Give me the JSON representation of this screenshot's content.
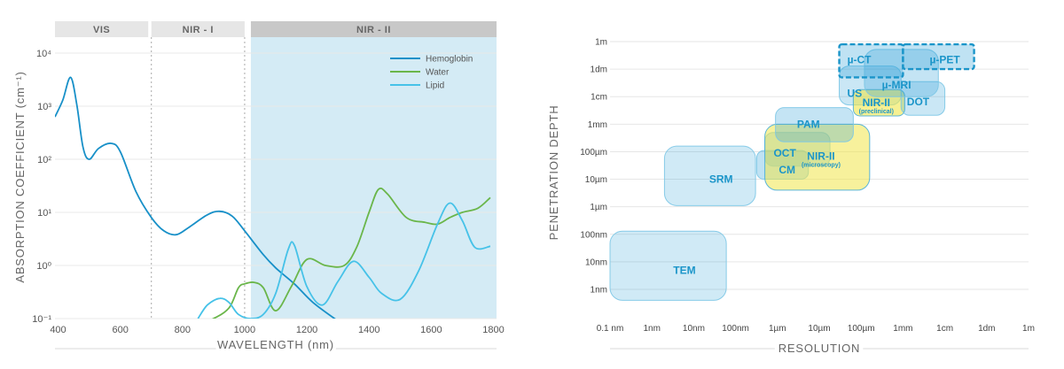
{
  "chart_data": [
    {
      "type": "line",
      "title": "",
      "xlabel": "WAVELENGTH (nm)",
      "ylabel": "ABSORPTION COEFFICIENT (cm⁻¹)",
      "xlim": [
        390,
        1810
      ],
      "y_scale": "log",
      "ylim": [
        0.1,
        20000
      ],
      "x_ticks": [
        "400",
        "600",
        "800",
        "1000",
        "1200",
        "1400",
        "1600",
        "1800"
      ],
      "x_tick_values": [
        400,
        600,
        800,
        1000,
        1200,
        1400,
        1600,
        1800
      ],
      "y_ticks": [
        "10⁻¹",
        "10⁰",
        "10¹",
        "10²",
        "10³",
        "10⁴"
      ],
      "y_tick_values": [
        0.1,
        1,
        10,
        100,
        1000,
        10000
      ],
      "grid": "horizontal",
      "legend_position": "top-right",
      "bands": [
        {
          "label": "VIS",
          "range": [
            390,
            690
          ]
        },
        {
          "label": "NIR - I",
          "range": [
            700,
            1000
          ]
        },
        {
          "label": "NIR - II",
          "range": [
            1020,
            1810
          ]
        }
      ],
      "dividers": [
        700,
        1000
      ],
      "shaded_range": [
        1020,
        1810
      ],
      "series": [
        {
          "name": "Hemoglobin",
          "color": "#1890c8",
          "x": [
            390,
            415,
            440,
            460,
            480,
            500,
            530,
            570,
            600,
            650,
            700,
            740,
            780,
            820,
            880,
            920,
            960,
            1000,
            1060,
            1100,
            1160,
            1220,
            1300
          ],
          "y": [
            630,
            1300,
            3500,
            1100,
            170,
            100,
            160,
            200,
            140,
            25,
            8,
            4.5,
            3.8,
            5.2,
            9,
            10.5,
            8.5,
            4.5,
            1.6,
            0.9,
            0.45,
            0.2,
            0.09
          ]
        },
        {
          "name": "Water",
          "color": "#6ab64a",
          "x": [
            850,
            900,
            950,
            980,
            1000,
            1030,
            1060,
            1100,
            1150,
            1200,
            1260,
            1320,
            1360,
            1400,
            1430,
            1460,
            1520,
            1580,
            1620,
            1660,
            1700,
            1750,
            1790
          ],
          "y": [
            0.08,
            0.1,
            0.16,
            0.38,
            0.45,
            0.48,
            0.38,
            0.14,
            0.4,
            1.3,
            1.0,
            1.0,
            2.2,
            10,
            27,
            22,
            8,
            6.5,
            6,
            8,
            10,
            12,
            19
          ]
        },
        {
          "name": "Lipid",
          "color": "#46c2e8",
          "x": [
            850,
            880,
            920,
            950,
            980,
            1020,
            1060,
            1100,
            1140,
            1160,
            1200,
            1250,
            1300,
            1350,
            1400,
            1440,
            1500,
            1560,
            1620,
            1660,
            1700,
            1740,
            1790
          ],
          "y": [
            0.1,
            0.18,
            0.24,
            0.2,
            0.12,
            0.1,
            0.12,
            0.3,
            2.0,
            2.4,
            0.4,
            0.18,
            0.5,
            1.2,
            0.6,
            0.3,
            0.23,
            0.8,
            6,
            15,
            7,
            2.2,
            2.3
          ]
        }
      ]
    },
    {
      "type": "scatter",
      "title": "",
      "xlabel": "RESOLUTION",
      "ylabel": "PENETRATION DEPTH",
      "x_scale": "log",
      "y_scale": "log",
      "x_ticks": [
        "0.1 nm",
        "1nm",
        "10nm",
        "100nm",
        "1µm",
        "10µm",
        "100µm",
        "1mm",
        "1cm",
        "1dm",
        "1m"
      ],
      "x_tick_values_m": [
        1e-10,
        1e-09,
        1e-08,
        1e-07,
        1e-06,
        1e-05,
        0.0001,
        0.001,
        0.01,
        0.1,
        1
      ],
      "y_ticks": [
        "1m",
        "1dm",
        "1cm",
        "1mm",
        "100µm",
        "10µm",
        "1µm",
        "100nm",
        "10nm",
        "1nm"
      ],
      "y_tick_values_m": [
        1,
        0.1,
        0.01,
        0.001,
        0.0001,
        1e-05,
        1e-06,
        1e-07,
        1e-08,
        1e-09
      ],
      "grid": "horizontal",
      "modalities": [
        {
          "label": "TEM",
          "sublabel": "",
          "x_range_m": [
            1e-10,
            6e-08
          ],
          "y_range_m": [
            4e-10,
            1.3e-07
          ],
          "style": "fill",
          "color": "#2a9fd6",
          "opacity": 0.22
        },
        {
          "label": "SRM",
          "sublabel": "",
          "x_range_m": [
            2e-09,
            3e-07
          ],
          "y_range_m": [
            1.1e-06,
            0.00016
          ],
          "style": "fill",
          "color": "#2a9fd6",
          "opacity": 0.22
        },
        {
          "label": "CM",
          "sublabel": "",
          "x_range_m": [
            3.2e-07,
            5.5e-06
          ],
          "y_range_m": [
            1e-05,
            0.00011
          ],
          "style": "fill",
          "color": "#2a9fd6",
          "opacity": 0.3
        },
        {
          "label": "OCT",
          "sublabel": "",
          "x_range_m": [
            5e-07,
            1.8e-05
          ],
          "y_range_m": [
            3e-05,
            0.0005
          ],
          "style": "fill",
          "color": "#2a9fd6",
          "opacity": 0.3
        },
        {
          "label": "NIR-II",
          "sublabel": "(microscopy)",
          "x_range_m": [
            5e-07,
            0.00016
          ],
          "y_range_m": [
            4e-06,
            0.001
          ],
          "style": "fill",
          "color": "#f0e64a",
          "opacity": 0.55
        },
        {
          "label": "PAM",
          "sublabel": "",
          "x_range_m": [
            9e-07,
            6.5e-05
          ],
          "y_range_m": [
            0.00023,
            0.004
          ],
          "style": "fill",
          "color": "#2a9fd6",
          "opacity": 0.28
        },
        {
          "label": "US",
          "sublabel": "",
          "x_range_m": [
            3e-05,
            0.0009
          ],
          "y_range_m": [
            0.005,
            0.13
          ],
          "style": "fill",
          "color": "#2a9fd6",
          "opacity": 0.25
        },
        {
          "label": "NIR-II",
          "sublabel": "(preclinical)",
          "x_range_m": [
            6.5e-05,
            0.0011
          ],
          "y_range_m": [
            0.002,
            0.018
          ],
          "style": "fill",
          "color": "#f0e64a",
          "opacity": 0.6
        },
        {
          "label": "DOT",
          "sublabel": "",
          "x_range_m": [
            0.0009,
            0.01
          ],
          "y_range_m": [
            0.0021,
            0.035
          ],
          "style": "fill",
          "color": "#2a9fd6",
          "opacity": 0.25
        },
        {
          "label": "µ-MRI",
          "sublabel": "",
          "x_range_m": [
            0.00012,
            0.007
          ],
          "y_range_m": [
            0.01,
            0.52
          ],
          "style": "fill",
          "color": "#2a9fd6",
          "opacity": 0.28
        },
        {
          "label": "µ-CT",
          "sublabel": "",
          "x_range_m": [
            3e-05,
            0.001
          ],
          "y_range_m": [
            0.05,
            0.8
          ],
          "style": "dashed",
          "color": "#2a9fd6",
          "opacity": 0.3
        },
        {
          "label": "µ-PET",
          "sublabel": "",
          "x_range_m": [
            0.001,
            0.05
          ],
          "y_range_m": [
            0.1,
            0.8
          ],
          "style": "dashed",
          "color": "#2a9fd6",
          "opacity": 0.3
        }
      ]
    }
  ]
}
